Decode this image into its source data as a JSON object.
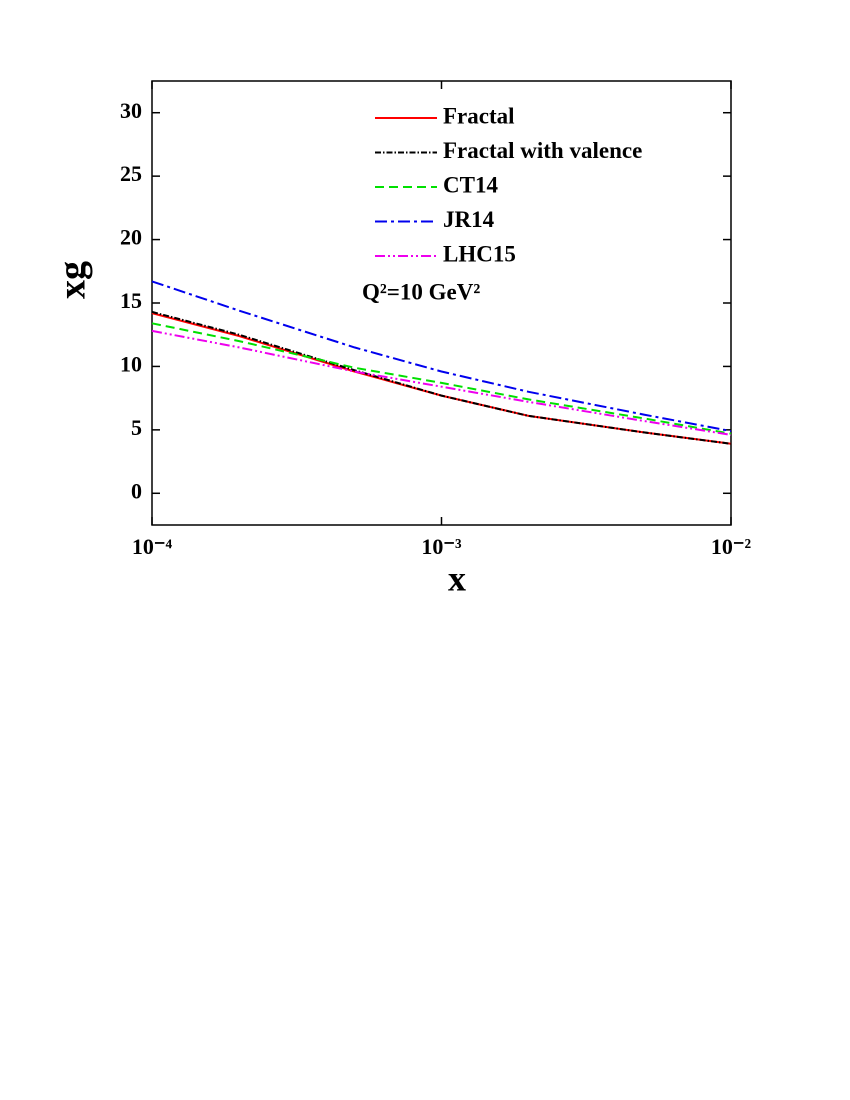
{
  "chart_data": {
    "type": "line",
    "x_label": "x",
    "y_label": "xg",
    "annotation": "Q²=10 GeV²",
    "x": [
      0.0001,
      0.0002,
      0.0005,
      0.001,
      0.002,
      0.005,
      0.01
    ],
    "x_log": true,
    "xlim": [
      0.0001,
      0.01
    ],
    "xticks": [
      {
        "value": 0.0001,
        "label": "10⁻⁴"
      },
      {
        "value": 0.001,
        "label": "10⁻³"
      },
      {
        "value": 0.01,
        "label": "10⁻²"
      }
    ],
    "ylim": [
      -2.5,
      32.5
    ],
    "yticks": [
      0,
      5,
      10,
      15,
      20,
      25,
      30
    ],
    "legend": "upper center",
    "series": [
      {
        "name": "Fractal",
        "color": "#ff0000",
        "style": "solid",
        "values": [
          14.2,
          12.4,
          9.6,
          7.7,
          6.1,
          4.8,
          3.9
        ]
      },
      {
        "name": "Fractal with valence",
        "color": "#000000",
        "style": "dashdot-fine",
        "values": [
          14.3,
          12.5,
          9.7,
          7.7,
          6.1,
          4.8,
          3.9
        ]
      },
      {
        "name": "CT14",
        "color": "#00e000",
        "style": "dashed",
        "values": [
          13.4,
          12.0,
          9.9,
          8.7,
          7.4,
          5.9,
          4.7
        ]
      },
      {
        "name": "JR14",
        "color": "#0000ee",
        "style": "dashdot",
        "values": [
          16.7,
          14.4,
          11.5,
          9.6,
          8.0,
          6.2,
          4.9
        ]
      },
      {
        "name": "LHC15",
        "color": "#ee00ee",
        "style": "dashdotdot",
        "values": [
          12.8,
          11.5,
          9.6,
          8.4,
          7.2,
          5.7,
          4.6
        ]
      }
    ]
  }
}
